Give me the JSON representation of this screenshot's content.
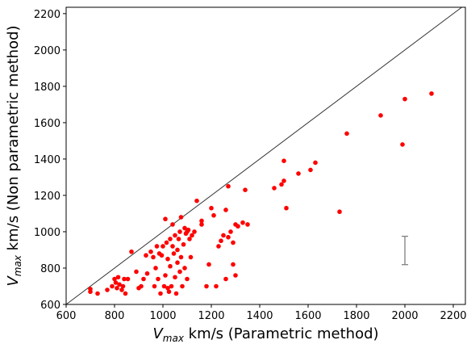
{
  "chart_data": {
    "type": "scatter",
    "xlabel": [
      "V",
      "max",
      " km/s (Parametric method)"
    ],
    "ylabel": [
      "V",
      "max",
      " km/s (Non parametric method)"
    ],
    "xlim": [
      600,
      2250
    ],
    "ylim": [
      600,
      2235
    ],
    "xticks": [
      600,
      800,
      1000,
      1200,
      1400,
      1600,
      1800,
      2000,
      2200
    ],
    "yticks": [
      600,
      800,
      1000,
      1200,
      1400,
      1600,
      1800,
      2000,
      2200
    ],
    "color": "#ff0000",
    "line_color": "#333333",
    "errorbar_color": "#808080",
    "x": [
      700,
      700,
      730,
      770,
      790,
      800,
      805,
      810,
      815,
      820,
      830,
      835,
      840,
      845,
      855,
      870,
      890,
      900,
      910,
      920,
      930,
      935,
      950,
      960,
      965,
      970,
      975,
      980,
      985,
      990,
      995,
      1000,
      1005,
      1010,
      1010,
      1015,
      1020,
      1020,
      1025,
      1030,
      1030,
      1035,
      1040,
      1040,
      1045,
      1050,
      1050,
      1055,
      1060,
      1060,
      1065,
      1070,
      1070,
      1075,
      1075,
      1080,
      1085,
      1090,
      1090,
      1095,
      1100,
      1100,
      1105,
      1110,
      1115,
      1120,
      1130,
      1140,
      1160,
      1160,
      1180,
      1190,
      1200,
      1210,
      1220,
      1230,
      1240,
      1250,
      1260,
      1260,
      1270,
      1270,
      1280,
      1290,
      1290,
      1300,
      1300,
      1310,
      1330,
      1340,
      1350,
      1460,
      1490,
      1500,
      1500,
      1510,
      1560,
      1610,
      1630,
      1730,
      1760,
      1900,
      1990,
      2000,
      2110
    ],
    "values": [
      670,
      685,
      660,
      680,
      700,
      740,
      720,
      690,
      750,
      710,
      680,
      700,
      740,
      660,
      740,
      890,
      780,
      690,
      700,
      740,
      870,
      770,
      890,
      860,
      700,
      800,
      920,
      740,
      880,
      660,
      870,
      920,
      700,
      1070,
      760,
      940,
      850,
      690,
      670,
      960,
      810,
      700,
      920,
      1040,
      880,
      750,
      980,
      660,
      830,
      900,
      960,
      1000,
      780,
      1080,
      860,
      700,
      930,
      1020,
      800,
      990,
      1000,
      740,
      1010,
      960,
      860,
      980,
      1000,
      1170,
      1060,
      1040,
      700,
      820,
      1130,
      1090,
      700,
      920,
      950,
      980,
      1120,
      740,
      1250,
      970,
      1000,
      820,
      940,
      1040,
      760,
      1030,
      1050,
      1230,
      1040,
      1240,
      1260,
      1280,
      1390,
      1130,
      1320,
      1340,
      1380,
      1110,
      1540,
      1640,
      1480,
      1730,
      1760
    ],
    "error_bar": {
      "x": 2000,
      "y": 897,
      "err": 78
    }
  }
}
